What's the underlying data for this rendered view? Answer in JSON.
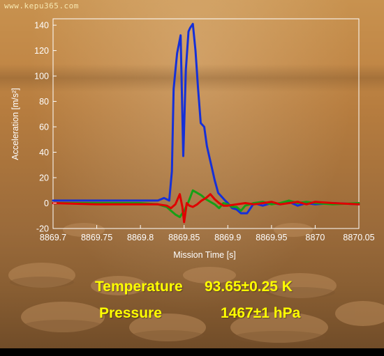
{
  "watermark": "www.kepu365.com",
  "readouts": {
    "temperature_label": "Temperature",
    "temperature_value": "93.65±0.25 K",
    "pressure_label": "Pressure",
    "pressure_value": "1467±1 hPa"
  },
  "colors": {
    "text_yellow": "#ffff00",
    "blue": "#1530d8",
    "red": "#e00000",
    "green": "#16a016",
    "frame": "#ffffff"
  },
  "chart_data": {
    "type": "line",
    "title": "",
    "xlabel": "Mission Time [s]",
    "ylabel": "Acceleration [m/s²]",
    "xlim": [
      8869.7,
      8870.05
    ],
    "ylim": [
      -20,
      145
    ],
    "xticks": [
      8869.7,
      8869.75,
      8869.8,
      8869.85,
      8869.9,
      8869.95,
      8870,
      8870.05
    ],
    "xtick_labels": [
      "8869.7",
      "8869.75",
      "8869.8",
      "8869.85",
      "8869.9",
      "8869.95",
      "8870",
      "8870.05"
    ],
    "yticks": [
      -20,
      0,
      20,
      40,
      60,
      80,
      100,
      120,
      140
    ],
    "ytick_labels": [
      "-20",
      "0",
      "20",
      "40",
      "60",
      "80",
      "100",
      "120",
      "140"
    ],
    "grid": false,
    "legend": false,
    "series": [
      {
        "color": "#1530d8",
        "x": [
          8869.7,
          8869.75,
          8869.8,
          8869.82,
          8869.827,
          8869.833,
          8869.836,
          8869.838,
          8869.842,
          8869.846,
          8869.849,
          8869.852,
          8869.855,
          8869.857,
          8869.86,
          8869.863,
          8869.866,
          8869.869,
          8869.873,
          8869.876,
          8869.879,
          8869.882,
          8869.885,
          8869.889,
          8869.893,
          8869.897,
          8869.9,
          8869.905,
          8869.91,
          8869.915,
          8869.918,
          8869.922,
          8869.925,
          8869.93,
          8869.94,
          8869.95,
          8869.96,
          8869.97,
          8869.98,
          8869.99,
          8870,
          8870.02,
          8870.05
        ],
        "y": [
          2,
          2,
          2,
          2,
          4,
          2,
          25,
          90,
          118,
          132,
          37,
          105,
          135,
          138,
          141,
          120,
          90,
          63,
          60,
          45,
          36,
          27,
          18,
          8,
          5,
          2,
          0,
          -4,
          -5,
          -8,
          -8,
          -8,
          -5,
          0,
          -2,
          0,
          -1,
          1,
          -2,
          0,
          -1,
          0,
          -1
        ]
      },
      {
        "color": "#16a016",
        "x": [
          8869.7,
          8869.75,
          8869.8,
          8869.82,
          8869.83,
          8869.835,
          8869.84,
          8869.845,
          8869.85,
          8869.855,
          8869.86,
          8869.865,
          8869.87,
          8869.875,
          8869.88,
          8869.885,
          8869.89,
          8869.895,
          8869.9,
          8869.905,
          8869.91,
          8869.915,
          8869.92,
          8869.93,
          8869.94,
          8869.95,
          8869.96,
          8869.97,
          8869.98,
          8869.99,
          8870,
          8870.02,
          8870.05
        ],
        "y": [
          0,
          0,
          0,
          -1,
          -3,
          -6,
          -9,
          -11,
          -6,
          1,
          10,
          8,
          6,
          3,
          1,
          -1,
          -4,
          0,
          -1,
          -3,
          -3,
          -6,
          -2,
          0,
          1,
          -1,
          0,
          2,
          0,
          1,
          0,
          -1,
          0
        ]
      },
      {
        "color": "#e00000",
        "x": [
          8869.7,
          8869.75,
          8869.8,
          8869.82,
          8869.83,
          8869.835,
          8869.84,
          8869.845,
          8869.848,
          8869.85,
          8869.853,
          8869.856,
          8869.86,
          8869.865,
          8869.87,
          8869.875,
          8869.88,
          8869.885,
          8869.89,
          8869.895,
          8869.9,
          8869.91,
          8869.92,
          8869.93,
          8869.94,
          8869.95,
          8869.96,
          8869.97,
          8869.98,
          8869.99,
          8870,
          8870.02,
          8870.05
        ],
        "y": [
          0,
          -1,
          -1,
          -1,
          -2,
          -4,
          -1,
          7,
          -3,
          -15,
          0,
          -2,
          -3,
          -1,
          2,
          4,
          7,
          3,
          0,
          -2,
          -2,
          -1,
          0,
          -1,
          0,
          1,
          -1,
          0,
          1,
          -1,
          1,
          0,
          -1
        ]
      }
    ]
  }
}
